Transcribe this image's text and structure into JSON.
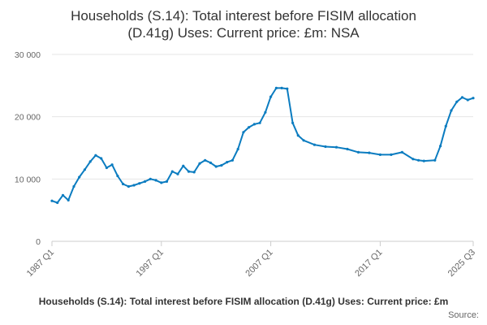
{
  "chart_data": {
    "type": "line",
    "title_lines": [
      "Households (S.14): Total interest before FISIM allocation",
      "(D.41g) Uses: Current price: £m: NSA"
    ],
    "ylim": [
      0,
      30000
    ],
    "y_ticks": [
      "0",
      "10 000",
      "20 000",
      "30 000"
    ],
    "y_tick_values": [
      0,
      10000,
      20000,
      30000
    ],
    "x_ticks": [
      "1987 Q1",
      "1997 Q1",
      "2007 Q1",
      "2017 Q1",
      "2025 Q3"
    ],
    "x_tick_values": [
      1987.0,
      1997.0,
      2007.0,
      2017.0,
      2025.5
    ],
    "legend": "Households (S.14): Total interest before FISIM allocation (D.41g) Uses: Current price: £m",
    "source_label": "Source:",
    "colors": {
      "line": "#0b7cc0",
      "grid": "#e6e6e6",
      "axis": "#cccccc"
    },
    "grid": true,
    "series": [
      {
        "name": "Households (S.14): Total interest before FISIM allocation (D.41g) Uses: Current price: £m",
        "x": [
          1987.0,
          1987.5,
          1988.0,
          1988.5,
          1989.0,
          1989.5,
          1990.0,
          1990.5,
          1991.0,
          1991.5,
          1992.0,
          1992.5,
          1993.0,
          1993.5,
          1994.0,
          1994.5,
          1995.0,
          1995.5,
          1996.0,
          1996.5,
          1997.0,
          1997.5,
          1998.0,
          1998.5,
          1999.0,
          1999.5,
          2000.0,
          2000.5,
          2001.0,
          2001.5,
          2002.0,
          2002.5,
          2003.0,
          2003.5,
          2004.0,
          2004.5,
          2005.0,
          2005.5,
          2006.0,
          2006.5,
          2007.0,
          2007.5,
          2008.0,
          2008.5,
          2009.0,
          2009.5,
          2010.0,
          2011.0,
          2012.0,
          2013.0,
          2014.0,
          2015.0,
          2016.0,
          2017.0,
          2018.0,
          2019.0,
          2020.0,
          2020.5,
          2021.0,
          2022.0,
          2022.5,
          2023.0,
          2023.5,
          2024.0,
          2024.5,
          2025.0,
          2025.5
        ],
        "y": [
          6500,
          6200,
          7400,
          6600,
          8800,
          10300,
          11500,
          12800,
          13800,
          13300,
          11800,
          12300,
          10500,
          9200,
          8800,
          9000,
          9300,
          9600,
          10000,
          9800,
          9400,
          9600,
          11200,
          10800,
          12100,
          11200,
          11100,
          12500,
          13000,
          12600,
          12000,
          12200,
          12700,
          13000,
          14800,
          17500,
          18300,
          18800,
          19000,
          20700,
          23200,
          24600,
          24600,
          24500,
          19000,
          17000,
          16200,
          15500,
          15200,
          15100,
          14800,
          14300,
          14200,
          13900,
          13900,
          14300,
          13200,
          13000,
          12900,
          13000,
          15300,
          18500,
          21000,
          22400,
          23100,
          22700,
          23000
        ]
      }
    ]
  }
}
